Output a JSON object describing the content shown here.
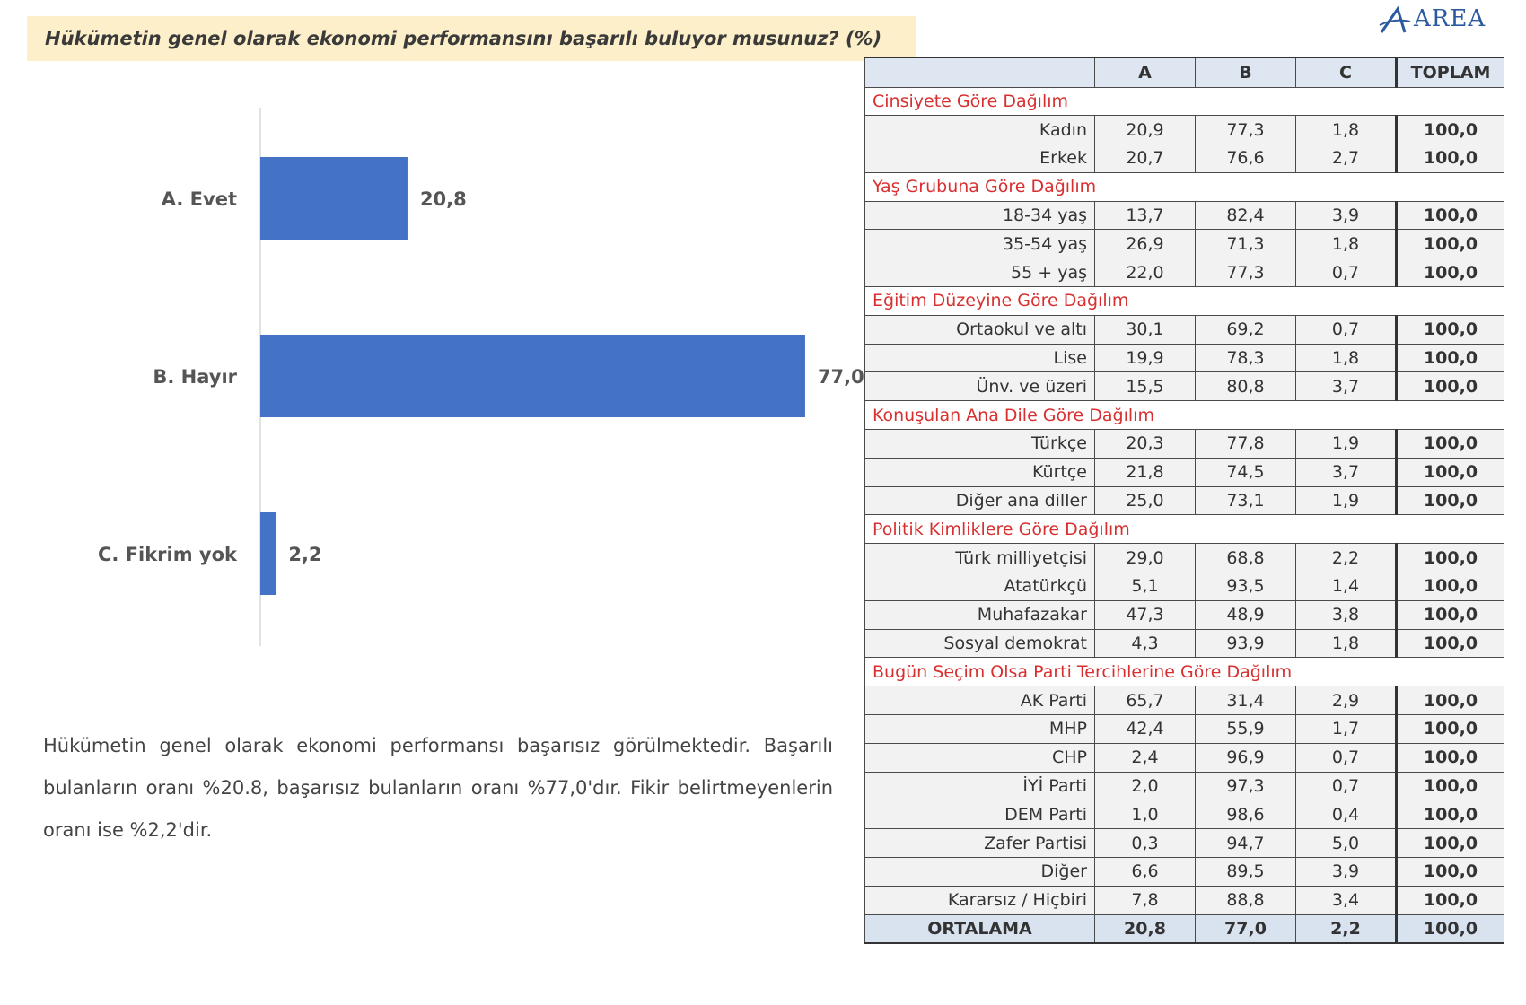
{
  "question_title": "Hükümetin genel olarak ekonomi performansını başarılı buluyor musunuz? (%)",
  "logo_text": "AREA",
  "chart_data": {
    "type": "bar",
    "orientation": "horizontal",
    "categories": [
      "A. Evet",
      "B. Hayır",
      "C. Fikrim yok"
    ],
    "values": [
      20.8,
      77.0,
      2.2
    ],
    "value_labels": [
      "20,8",
      "77,0",
      "2,2"
    ],
    "xlim": [
      0,
      85
    ],
    "grid": false,
    "colors": {
      "bar": "#4472c4"
    }
  },
  "summary": "Hükümetin genel olarak ekonomi performansı başarısız görülmektedir. Başarılı bulanların oranı %20.8, başarısız bulanların oranı %77,0'dır. Fikir belirtmeyenlerin oranı ise %2,2'dir.",
  "table": {
    "headers": [
      "",
      "A",
      "B",
      "C",
      "TOPLAM"
    ],
    "groups": [
      {
        "title": "Cinsiyete Göre Dağılım",
        "rows": [
          {
            "label": "Kadın",
            "a": "20,9",
            "b": "77,3",
            "c": "1,8",
            "total": "100,0"
          },
          {
            "label": "Erkek",
            "a": "20,7",
            "b": "76,6",
            "c": "2,7",
            "total": "100,0"
          }
        ]
      },
      {
        "title": "Yaş Grubuna Göre Dağılım",
        "rows": [
          {
            "label": "18-34 yaş",
            "a": "13,7",
            "b": "82,4",
            "c": "3,9",
            "total": "100,0"
          },
          {
            "label": "35-54 yaş",
            "a": "26,9",
            "b": "71,3",
            "c": "1,8",
            "total": "100,0"
          },
          {
            "label": "55 + yaş",
            "a": "22,0",
            "b": "77,3",
            "c": "0,7",
            "total": "100,0"
          }
        ]
      },
      {
        "title": "Eğitim Düzeyine Göre Dağılım",
        "rows": [
          {
            "label": "Ortaokul ve altı",
            "a": "30,1",
            "b": "69,2",
            "c": "0,7",
            "total": "100,0"
          },
          {
            "label": "Lise",
            "a": "19,9",
            "b": "78,3",
            "c": "1,8",
            "total": "100,0"
          },
          {
            "label": "Ünv. ve üzeri",
            "a": "15,5",
            "b": "80,8",
            "c": "3,7",
            "total": "100,0"
          }
        ]
      },
      {
        "title": "Konuşulan Ana Dile Göre Dağılım",
        "rows": [
          {
            "label": "Türkçe",
            "a": "20,3",
            "b": "77,8",
            "c": "1,9",
            "total": "100,0"
          },
          {
            "label": "Kürtçe",
            "a": "21,8",
            "b": "74,5",
            "c": "3,7",
            "total": "100,0"
          },
          {
            "label": "Diğer ana diller",
            "a": "25,0",
            "b": "73,1",
            "c": "1,9",
            "total": "100,0"
          }
        ]
      },
      {
        "title": "Politik Kimliklere Göre Dağılım",
        "rows": [
          {
            "label": "Türk milliyetçisi",
            "a": "29,0",
            "b": "68,8",
            "c": "2,2",
            "total": "100,0"
          },
          {
            "label": "Atatürkçü",
            "a": "5,1",
            "b": "93,5",
            "c": "1,4",
            "total": "100,0"
          },
          {
            "label": "Muhafazakar",
            "a": "47,3",
            "b": "48,9",
            "c": "3,8",
            "total": "100,0"
          },
          {
            "label": "Sosyal demokrat",
            "a": "4,3",
            "b": "93,9",
            "c": "1,8",
            "total": "100,0"
          }
        ]
      },
      {
        "title": "Bugün Seçim Olsa Parti Tercihlerine Göre Dağılım",
        "rows": [
          {
            "label": "AK Parti",
            "a": "65,7",
            "b": "31,4",
            "c": "2,9",
            "total": "100,0"
          },
          {
            "label": "MHP",
            "a": "42,4",
            "b": "55,9",
            "c": "1,7",
            "total": "100,0"
          },
          {
            "label": "CHP",
            "a": "2,4",
            "b": "96,9",
            "c": "0,7",
            "total": "100,0"
          },
          {
            "label": "İYİ Parti",
            "a": "2,0",
            "b": "97,3",
            "c": "0,7",
            "total": "100,0"
          },
          {
            "label": "DEM Parti",
            "a": "1,0",
            "b": "98,6",
            "c": "0,4",
            "total": "100,0"
          },
          {
            "label": "Zafer Partisi",
            "a": "0,3",
            "b": "94,7",
            "c": "5,0",
            "total": "100,0"
          },
          {
            "label": "Diğer",
            "a": "6,6",
            "b": "89,5",
            "c": "3,9",
            "total": "100,0"
          },
          {
            "label": "Kararsız / Hiçbiri",
            "a": "7,8",
            "b": "88,8",
            "c": "3,4",
            "total": "100,0"
          }
        ]
      }
    ],
    "average": {
      "label": "ORTALAMA",
      "a": "20,8",
      "b": "77,0",
      "c": "2,2",
      "total": "100,0"
    }
  }
}
